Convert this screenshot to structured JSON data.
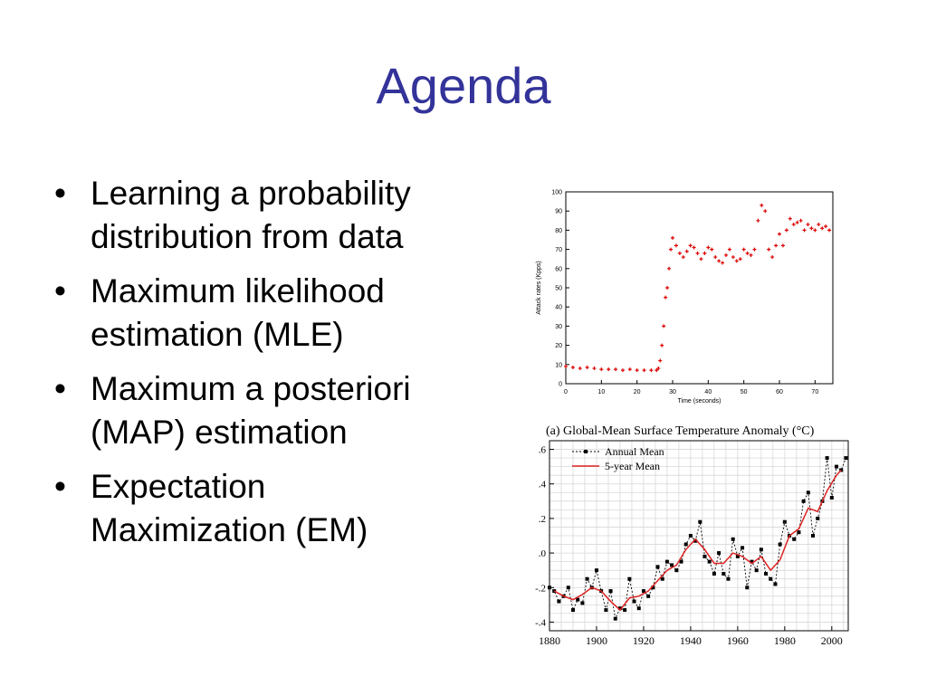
{
  "slide": {
    "title": "Agenda",
    "bullets": [
      {
        "line1": "Learning a probability",
        "line2": "distribution from data"
      },
      {
        "line1": "Maximum likelihood",
        "line2": "estimation (MLE)"
      },
      {
        "line1": "Maximum a posteriori",
        "line2": "(MAP) estimation"
      },
      {
        "line1": "Expectation",
        "line2": "Maximization (EM)"
      }
    ],
    "bullet_glyph": "•",
    "colors": {
      "title": "#33339a",
      "attack_series": "#dd0000",
      "annual": "#000000",
      "five_year": "#dd2222"
    }
  },
  "chart_data": [
    {
      "type": "scatter",
      "title": "",
      "xlabel": "Time (seconds)",
      "ylabel": "Attack rates (Kpps)",
      "xlim": [
        0,
        75
      ],
      "ylim": [
        0,
        100
      ],
      "xticks": [
        0,
        10,
        20,
        30,
        40,
        50,
        60,
        70
      ],
      "yticks": [
        0,
        10,
        20,
        30,
        40,
        50,
        60,
        70,
        80,
        90,
        100
      ],
      "series": [
        {
          "marker": "+",
          "points": [
            [
              0,
              9
            ],
            [
              2,
              8.5
            ],
            [
              4,
              8
            ],
            [
              6,
              8.5
            ],
            [
              8,
              8
            ],
            [
              10,
              7.5
            ],
            [
              12,
              7.5
            ],
            [
              14,
              7.5
            ],
            [
              16,
              7
            ],
            [
              18,
              7.5
            ],
            [
              20,
              7
            ],
            [
              22,
              7
            ],
            [
              24,
              7
            ],
            [
              25.5,
              7
            ],
            [
              26,
              8
            ],
            [
              26.5,
              12
            ],
            [
              27,
              20
            ],
            [
              27.5,
              30
            ],
            [
              28,
              45
            ],
            [
              28.5,
              50
            ],
            [
              29,
              60
            ],
            [
              29.5,
              70
            ],
            [
              30,
              76
            ],
            [
              31,
              72
            ],
            [
              32,
              68
            ],
            [
              33,
              66
            ],
            [
              34,
              69
            ],
            [
              35,
              72
            ],
            [
              36,
              71
            ],
            [
              37,
              68
            ],
            [
              38,
              65
            ],
            [
              39,
              68
            ],
            [
              40,
              71
            ],
            [
              41,
              70
            ],
            [
              42,
              66
            ],
            [
              43,
              64
            ],
            [
              44,
              63
            ],
            [
              45,
              67
            ],
            [
              46,
              70
            ],
            [
              47,
              66
            ],
            [
              48,
              64
            ],
            [
              49,
              65
            ],
            [
              50,
              70
            ],
            [
              51,
              68
            ],
            [
              52,
              67
            ],
            [
              53,
              70
            ],
            [
              54,
              85
            ],
            [
              55,
              93
            ],
            [
              56,
              90
            ],
            [
              57,
              70
            ],
            [
              58,
              66
            ],
            [
              59,
              72
            ],
            [
              60,
              78
            ],
            [
              61,
              72
            ],
            [
              62,
              80
            ],
            [
              63,
              86
            ],
            [
              64,
              83
            ],
            [
              65,
              84
            ],
            [
              66,
              85
            ],
            [
              67,
              80
            ],
            [
              68,
              83
            ],
            [
              69,
              81
            ],
            [
              70,
              80
            ],
            [
              71,
              83
            ],
            [
              72,
              81
            ],
            [
              73,
              82
            ],
            [
              74,
              80
            ]
          ]
        }
      ]
    },
    {
      "type": "line",
      "title": "(a)  Global-Mean Surface Temperature Anomaly (°C)",
      "xlabel": "",
      "ylabel": "",
      "xlim": [
        1880,
        2007
      ],
      "ylim": [
        -0.45,
        0.65
      ],
      "xticks": [
        1880,
        1900,
        1920,
        1940,
        1960,
        1980,
        2000
      ],
      "ytick_values": [
        -0.4,
        -0.2,
        0.0,
        0.2,
        0.4,
        0.6
      ],
      "ytick_labels": [
        "-.4",
        "-.2",
        ".0",
        ".2",
        ".4",
        ".6"
      ],
      "legend": {
        "position": "top-left",
        "entries": [
          "Annual Mean",
          "5-year Mean"
        ]
      },
      "series": [
        {
          "name": "Annual Mean",
          "x": [
            1880,
            1882,
            1884,
            1886,
            1888,
            1890,
            1892,
            1894,
            1896,
            1898,
            1900,
            1902,
            1904,
            1906,
            1908,
            1910,
            1912,
            1914,
            1916,
            1918,
            1920,
            1922,
            1924,
            1926,
            1928,
            1930,
            1932,
            1934,
            1936,
            1938,
            1940,
            1942,
            1944,
            1946,
            1948,
            1950,
            1952,
            1954,
            1956,
            1958,
            1960,
            1962,
            1964,
            1966,
            1968,
            1970,
            1972,
            1974,
            1976,
            1978,
            1980,
            1982,
            1984,
            1986,
            1988,
            1990,
            1992,
            1994,
            1996,
            1998,
            2000,
            2002,
            2004,
            2006
          ],
          "values": [
            -0.2,
            -0.22,
            -0.28,
            -0.25,
            -0.2,
            -0.33,
            -0.27,
            -0.29,
            -0.15,
            -0.2,
            -0.1,
            -0.22,
            -0.33,
            -0.22,
            -0.38,
            -0.32,
            -0.33,
            -0.15,
            -0.28,
            -0.32,
            -0.22,
            -0.25,
            -0.2,
            -0.08,
            -0.15,
            -0.05,
            -0.07,
            -0.1,
            -0.05,
            0.05,
            0.1,
            0.07,
            0.18,
            -0.02,
            -0.05,
            -0.12,
            0.0,
            -0.12,
            -0.15,
            0.08,
            -0.02,
            0.03,
            -0.2,
            -0.05,
            -0.1,
            0.02,
            -0.12,
            -0.15,
            -0.18,
            0.05,
            0.18,
            0.1,
            0.08,
            0.12,
            0.3,
            0.35,
            0.1,
            0.2,
            0.3,
            0.55,
            0.32,
            0.5,
            0.48,
            0.55
          ]
        },
        {
          "name": "5-year Mean",
          "x": [
            1882,
            1886,
            1890,
            1894,
            1898,
            1902,
            1906,
            1910,
            1914,
            1918,
            1922,
            1926,
            1930,
            1934,
            1938,
            1942,
            1946,
            1950,
            1954,
            1958,
            1962,
            1966,
            1970,
            1974,
            1978,
            1982,
            1986,
            1990,
            1994,
            1998,
            2002,
            2004
          ],
          "values": [
            -0.22,
            -0.25,
            -0.27,
            -0.24,
            -0.2,
            -0.22,
            -0.28,
            -0.33,
            -0.26,
            -0.25,
            -0.22,
            -0.16,
            -0.1,
            -0.07,
            0.02,
            0.08,
            0.02,
            -0.06,
            -0.06,
            0.0,
            -0.02,
            -0.06,
            -0.02,
            -0.1,
            -0.04,
            0.1,
            0.14,
            0.26,
            0.24,
            0.36,
            0.45,
            0.48
          ]
        }
      ]
    }
  ]
}
